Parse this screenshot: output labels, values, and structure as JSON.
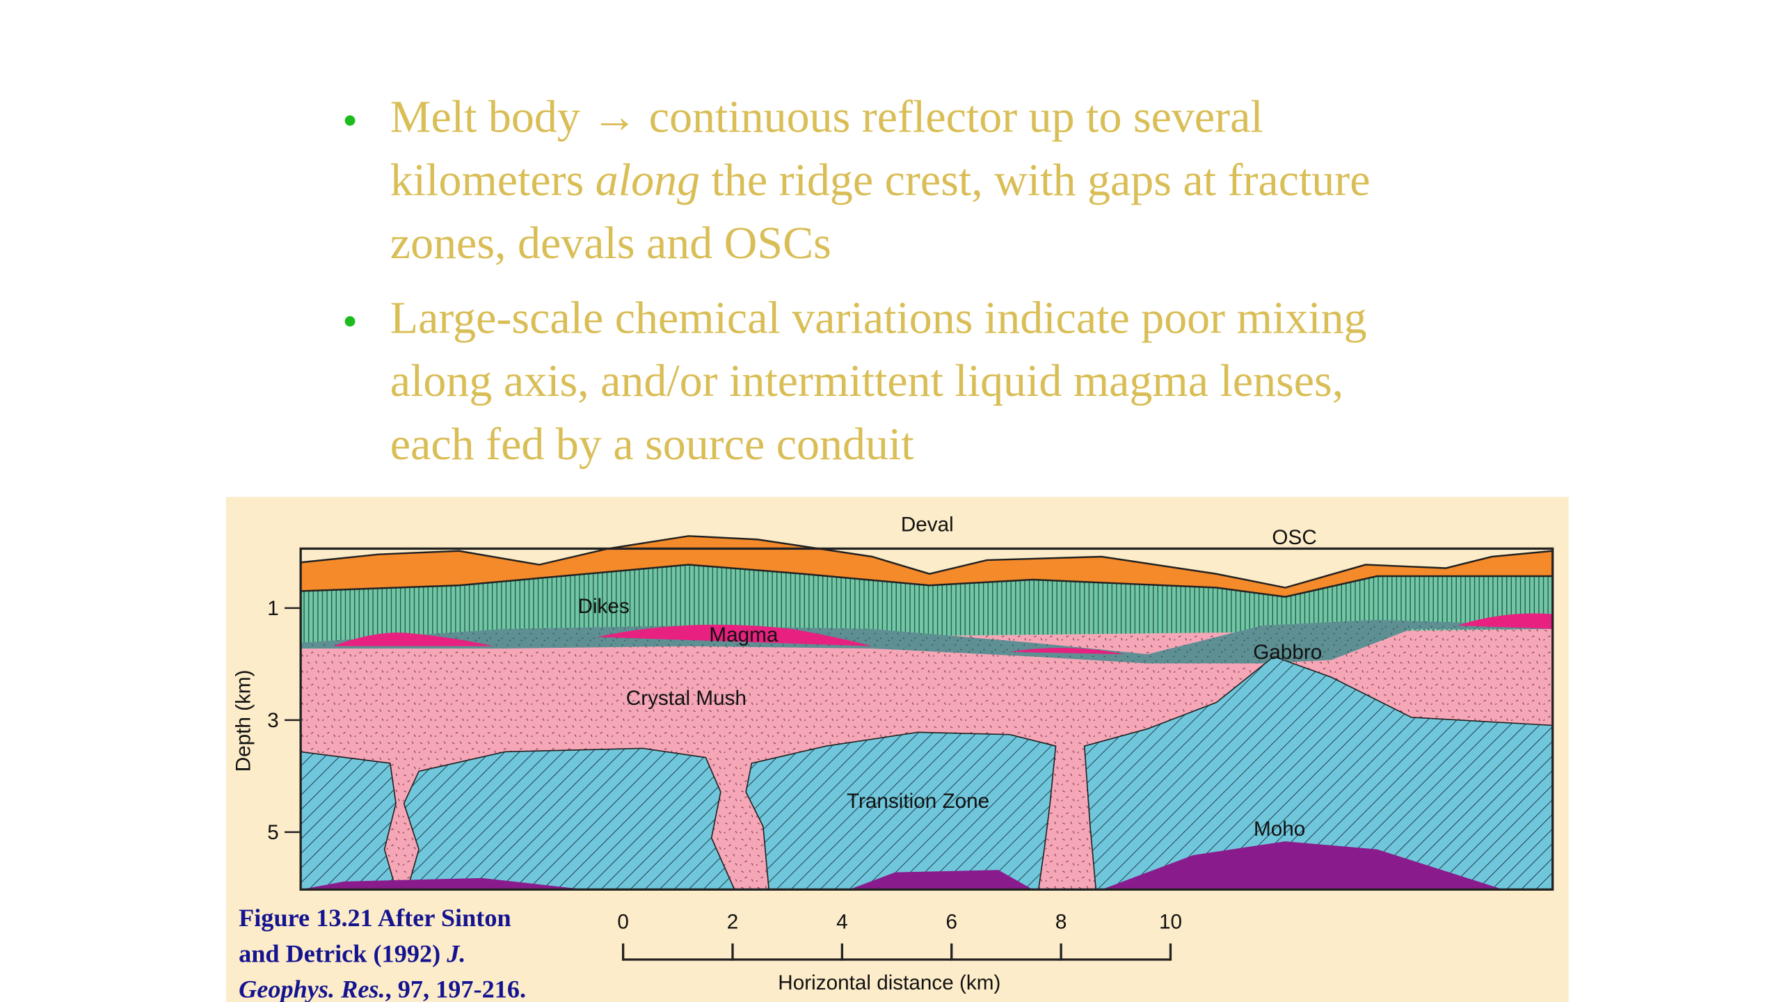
{
  "bullets": [
    {
      "lines": [
        [
          {
            "text": "Melt body → continuous reflector up to several"
          }
        ],
        [
          {
            "text": "kilometers "
          },
          {
            "text": "along",
            "italic": true
          },
          {
            "text": " the ridge crest, with gaps at fracture"
          }
        ],
        [
          {
            "text": "zones, devals and OSCs"
          }
        ]
      ]
    },
    {
      "lines": [
        [
          {
            "text": "Large-scale chemical variations indicate poor mixing"
          }
        ],
        [
          {
            "text": "along axis, and/or intermittent liquid magma lenses,"
          }
        ],
        [
          {
            "text": "each fed by a source conduit"
          }
        ]
      ]
    }
  ],
  "figure": {
    "labels": {
      "deval": "Deval",
      "osc": "OSC",
      "dikes": "Dikes",
      "magma": "Magma",
      "gabbro": "Gabbro",
      "crystal_mush": "Crystal Mush",
      "transition_zone": "Transition Zone",
      "moho": "Moho"
    },
    "depth_axis_label": "Depth (km)",
    "depth_ticks": [
      1,
      3,
      5
    ],
    "distance_axis_label": "Horizontal distance (km)",
    "distance_ticks": [
      0,
      2,
      4,
      6,
      8,
      10
    ]
  },
  "caption": {
    "lines": [
      [
        {
          "text": "Figure 13.21 After Sinton"
        }
      ],
      [
        {
          "text": "and Detrick (1992) "
        },
        {
          "text": "J.",
          "italic": true
        }
      ],
      [
        {
          "text": "Geophys. Res.",
          "italic": true
        },
        {
          "text": ", 97, 197-216."
        }
      ]
    ]
  }
}
